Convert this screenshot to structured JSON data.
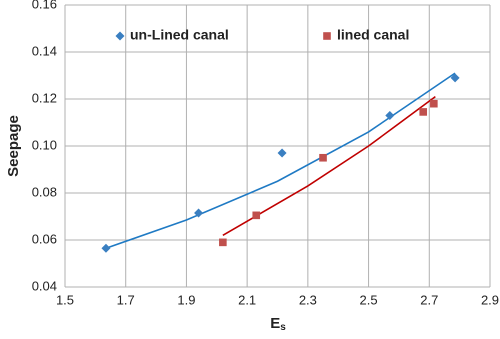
{
  "chart_data": {
    "type": "scatter",
    "xlabel": [
      "E",
      "s"
    ],
    "ylabel": "Seepage",
    "series": [
      {
        "name": "un-Lined canal",
        "color": "#3a7fc1",
        "marker": "diamond",
        "x": [
          1.635,
          1.94,
          2.215,
          2.57,
          2.785
        ],
        "values": [
          0.0565,
          0.0715,
          0.097,
          0.113,
          0.129
        ]
      },
      {
        "name": "lined canal",
        "color": "#c0504d",
        "marker": "square",
        "x": [
          2.02,
          2.13,
          2.35,
          2.68,
          2.715
        ],
        "values": [
          0.059,
          0.0705,
          0.095,
          0.1145,
          0.118
        ]
      }
    ],
    "trendlines": [
      {
        "color": "#1f7ac4",
        "x": [
          1.635,
          1.9,
          2.2,
          2.5,
          2.785
        ],
        "values": [
          0.0565,
          0.0685,
          0.085,
          0.106,
          0.131
        ]
      },
      {
        "color": "#c00000",
        "x": [
          2.02,
          2.3,
          2.5,
          2.72
        ],
        "values": [
          0.062,
          0.083,
          0.1,
          0.121
        ]
      }
    ],
    "xlim": [
      1.5,
      2.9
    ],
    "xticks": [
      1.5,
      1.7,
      1.9,
      2.1,
      2.3,
      2.5,
      2.7,
      2.9
    ],
    "ylim": [
      0.04,
      0.16
    ],
    "yticks": [
      0.04,
      0.06,
      0.08,
      {
        "value": 0.1,
        "label": "0.10"
      },
      0.12,
      0.14,
      0.16
    ],
    "grid": true,
    "legend": "top"
  }
}
